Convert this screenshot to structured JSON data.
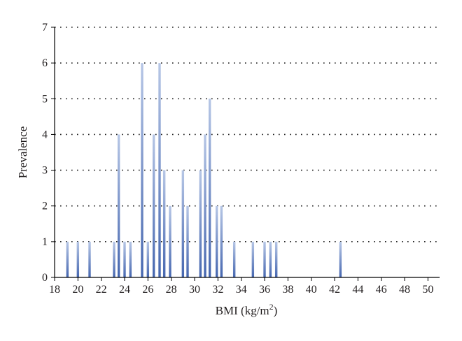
{
  "chart_data": {
    "type": "bar",
    "xlabel_main": "BMI (kg/m",
    "xlabel_sup": "2",
    "xlabel_end": ")",
    "ylabel": "Prevalence",
    "xlim": [
      18,
      51
    ],
    "ylim": [
      0,
      7
    ],
    "x_ticks": [
      "18",
      "20",
      "22",
      "24",
      "26",
      "28",
      "30",
      "32",
      "34",
      "36",
      "38",
      "40",
      "42",
      "44",
      "46",
      "48",
      "50"
    ],
    "y_ticks": [
      "0",
      "1",
      "2",
      "3",
      "4",
      "5",
      "6",
      "7"
    ],
    "grid": "horizontal-dotted",
    "bar_color_top": "#b7c7e6",
    "bar_color_bottom": "#4667b0",
    "points": [
      {
        "x": 19.1,
        "y": 1
      },
      {
        "x": 20.0,
        "y": 1
      },
      {
        "x": 21.0,
        "y": 1
      },
      {
        "x": 23.1,
        "y": 1
      },
      {
        "x": 23.5,
        "y": 4
      },
      {
        "x": 24.0,
        "y": 1
      },
      {
        "x": 24.5,
        "y": 1
      },
      {
        "x": 25.5,
        "y": 6
      },
      {
        "x": 26.0,
        "y": 1
      },
      {
        "x": 26.5,
        "y": 4
      },
      {
        "x": 27.0,
        "y": 6
      },
      {
        "x": 27.4,
        "y": 3
      },
      {
        "x": 27.9,
        "y": 2
      },
      {
        "x": 29.0,
        "y": 3
      },
      {
        "x": 29.4,
        "y": 2
      },
      {
        "x": 30.5,
        "y": 3
      },
      {
        "x": 30.9,
        "y": 4
      },
      {
        "x": 31.3,
        "y": 5
      },
      {
        "x": 31.9,
        "y": 2
      },
      {
        "x": 32.3,
        "y": 2
      },
      {
        "x": 33.4,
        "y": 1
      },
      {
        "x": 35.0,
        "y": 1
      },
      {
        "x": 36.0,
        "y": 1
      },
      {
        "x": 36.5,
        "y": 1
      },
      {
        "x": 37.0,
        "y": 1
      },
      {
        "x": 42.5,
        "y": 1
      }
    ]
  }
}
